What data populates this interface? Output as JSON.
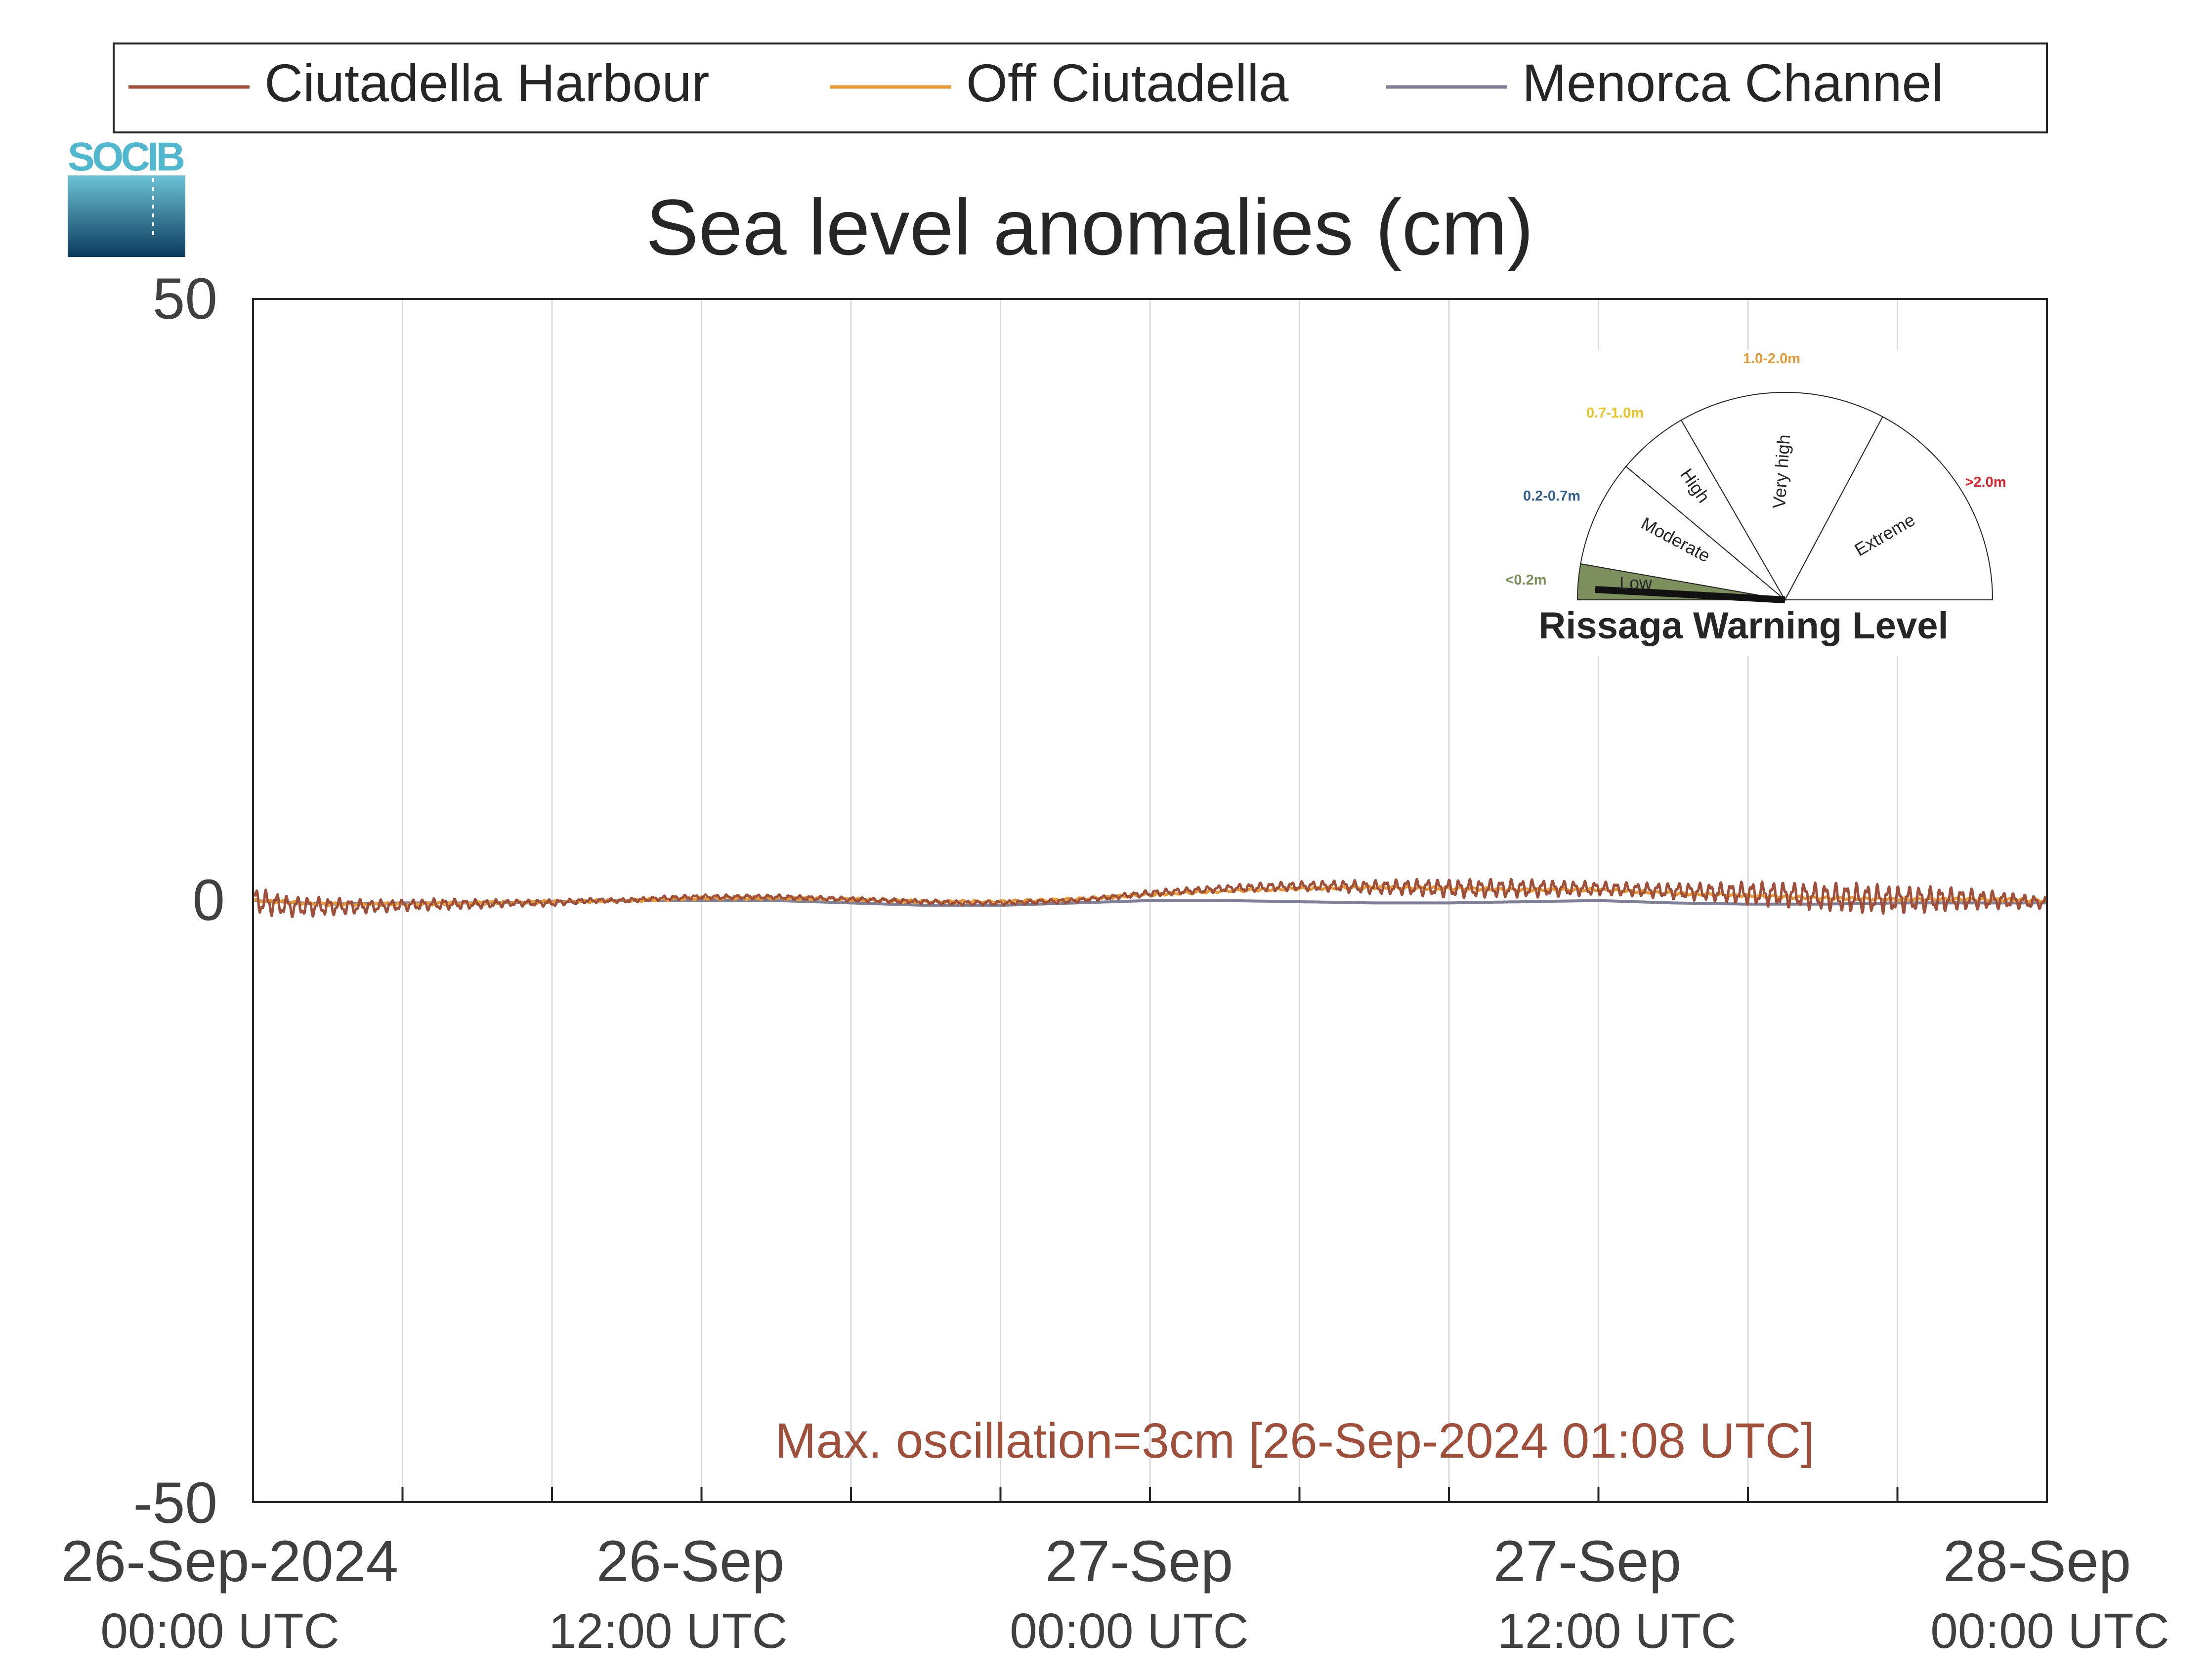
{
  "chart_data": {
    "type": "line",
    "title": "Sea level anomalies (cm)",
    "xlabel": "",
    "ylabel": "",
    "ylim": [
      -50,
      50
    ],
    "yticks": [
      "50",
      "0",
      "-50"
    ],
    "xlim_hours": [
      0,
      48
    ],
    "x_tick_labels": [
      {
        "date": "26-Sep-2024",
        "time": "00:00 UTC",
        "hour": 0
      },
      {
        "date": "26-Sep",
        "time": "12:00 UTC",
        "hour": 12
      },
      {
        "date": "27-Sep",
        "time": "00:00 UTC",
        "hour": 24
      },
      {
        "date": "27-Sep",
        "time": "12:00 UTC",
        "hour": 36
      },
      {
        "date": "28-Sep",
        "time": "00:00 UTC",
        "hour": 48
      }
    ],
    "grid": "vertical",
    "legend_position": "top",
    "series": [
      {
        "name": "Ciutadella Harbour",
        "color": "#a0503a",
        "hours": [
          0,
          1,
          2,
          3,
          4,
          5,
          6,
          7,
          8,
          9,
          10,
          11,
          12,
          13,
          14,
          15,
          16,
          17,
          18,
          19,
          20,
          21,
          22,
          23,
          24,
          25,
          26,
          27,
          28,
          29,
          30,
          31,
          32,
          33,
          34,
          35,
          36,
          37,
          38,
          39,
          40,
          41,
          42,
          43,
          44,
          45,
          46,
          47,
          48
        ],
        "values": [
          0,
          -0.5,
          -0.5,
          -0.5,
          -0.4,
          -0.3,
          -0.3,
          -0.2,
          -0.2,
          0,
          0,
          0.2,
          0.3,
          0.3,
          0.3,
          0.2,
          0.1,
          0,
          -0.1,
          -0.2,
          -0.2,
          -0.1,
          0,
          0.3,
          0.6,
          0.8,
          1,
          1.1,
          1.2,
          1.2,
          1.1,
          1.1,
          1,
          1,
          1,
          1,
          1,
          0.9,
          0.8,
          0.7,
          0.6,
          0.5,
          0.3,
          0.2,
          0.1,
          0.1,
          0.1,
          0,
          -0.2
        ],
        "oscillation_amplitude": [
          1.2,
          0.9,
          0.8,
          0.6,
          0.5,
          0.5,
          0.4,
          0.3,
          0.3,
          0.2,
          0.2,
          0.2,
          0.2,
          0.2,
          0.2,
          0.2,
          0.2,
          0.2,
          0.2,
          0.2,
          0.2,
          0.2,
          0.2,
          0.2,
          0.3,
          0.3,
          0.3,
          0.4,
          0.4,
          0.5,
          0.6,
          0.7,
          0.8,
          0.8,
          0.8,
          0.7,
          0.6,
          0.6,
          0.7,
          0.8,
          1,
          1.1,
          1.2,
          1.3,
          1.2,
          1.1,
          0.9,
          0.7,
          0.5
        ]
      },
      {
        "name": "Off Ciutadella",
        "color": "#e89a35",
        "hours": [
          0,
          2,
          4,
          6,
          8,
          10,
          12,
          14,
          16,
          18,
          20,
          22,
          24,
          26,
          28,
          30,
          32,
          34,
          36,
          38,
          40,
          42,
          44,
          46,
          48
        ],
        "values": [
          0,
          -0.3,
          -0.3,
          -0.2,
          -0.1,
          0,
          0.2,
          0.2,
          0.1,
          -0.1,
          -0.1,
          0.1,
          0.5,
          0.8,
          1,
          1.1,
          1,
          0.9,
          0.9,
          0.6,
          0.4,
          0.2,
          0.1,
          0.1,
          0
        ]
      },
      {
        "name": "Menorca Channel",
        "color": "#7f7f98",
        "hours": [
          0,
          2,
          4,
          6,
          8,
          10,
          12,
          14,
          16,
          18,
          20,
          22,
          24,
          26,
          28,
          30,
          32,
          34,
          36,
          38,
          40,
          42,
          44,
          46,
          48
        ],
        "values": [
          0,
          -0.3,
          -0.2,
          -0.2,
          -0.1,
          0,
          0,
          0,
          -0.2,
          -0.4,
          -0.4,
          -0.2,
          0,
          0,
          -0.1,
          -0.2,
          -0.2,
          -0.1,
          0,
          -0.2,
          -0.3,
          -0.3,
          -0.2,
          -0.2,
          -0.2
        ]
      }
    ],
    "annotation": "Max. oscillation=3cm [26-Sep-2024 01:08 UTC]",
    "annotation_color": "#a0503a"
  },
  "logo": {
    "text": "SOCIB"
  },
  "gauge": {
    "title": "Rissaga Warning Level",
    "needle_level": "Low",
    "sectors": [
      {
        "label": "Low",
        "range": "<0.2m",
        "range_color": "#7a8f5a",
        "fill": "#7d8f5c"
      },
      {
        "label": "Moderate",
        "range": "0.2-0.7m",
        "range_color": "#2f5f8f",
        "fill": "#ffffff"
      },
      {
        "label": "High",
        "range": "0.7-1.0m",
        "range_color": "#e8c520",
        "fill": "#ffffff"
      },
      {
        "label": "Very high",
        "range": "1.0-2.0m",
        "range_color": "#e89a35",
        "fill": "#ffffff"
      },
      {
        "label": "Extreme",
        "range": ">2.0m",
        "range_color": "#e0202a",
        "fill": "#ffffff"
      }
    ]
  }
}
